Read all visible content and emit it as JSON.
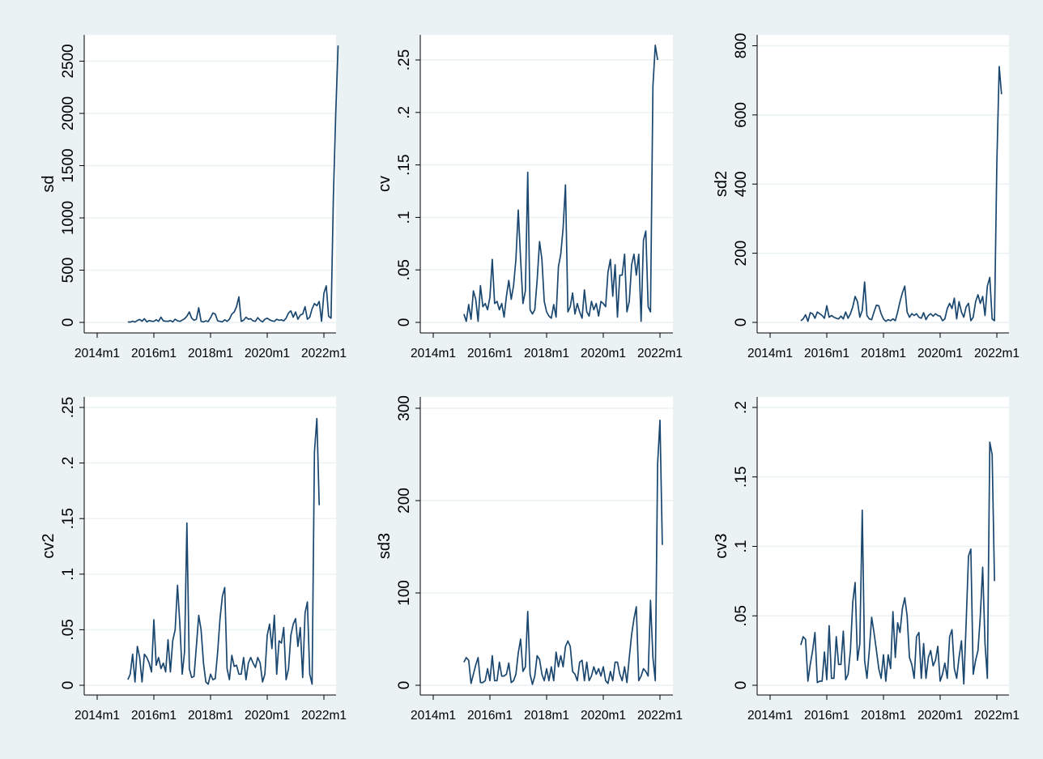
{
  "figure": {
    "background": "#eaf2f3",
    "panel_background": "#ffffff",
    "line_color": "#1a476f",
    "grid_color": "#eaf2f3"
  },
  "chart_data": [
    {
      "type": "line",
      "ylabel": "sd",
      "xlabel": "",
      "xlim": [
        "2014m1",
        "2022m1"
      ],
      "ylim": [
        0,
        2700
      ],
      "yticks": [
        0,
        500,
        1000,
        1500,
        2000,
        2500
      ],
      "ytick_labels": [
        "0",
        "500",
        "1000",
        "1500",
        "2000",
        "2500"
      ],
      "xticks": [
        "2014m1",
        "2016m1",
        "2018m1",
        "2020m1",
        "2022m1"
      ],
      "grid": true,
      "x_start": "2015m2",
      "values": [
        5,
        2,
        12,
        3,
        18,
        28,
        12,
        35,
        5,
        18,
        12,
        10,
        25,
        10,
        50,
        15,
        12,
        10,
        18,
        5,
        30,
        15,
        10,
        22,
        35,
        60,
        100,
        40,
        20,
        30,
        140,
        10,
        5,
        15,
        8,
        45,
        90,
        80,
        15,
        10,
        5,
        25,
        10,
        30,
        80,
        100,
        150,
        245,
        10,
        20,
        50,
        30,
        35,
        15,
        10,
        45,
        20,
        5,
        30,
        40,
        25,
        15,
        10,
        30,
        20,
        25,
        15,
        40,
        90,
        110,
        50,
        100,
        30,
        70,
        80,
        150,
        30,
        50,
        130,
        180,
        160,
        200,
        10,
        280,
        350,
        60,
        40,
        1200,
        2000,
        2650
      ]
    },
    {
      "type": "line",
      "ylabel": "cv",
      "xlabel": "",
      "xlim": [
        "2014m1",
        "2022m1"
      ],
      "ylim": [
        0,
        0.27
      ],
      "yticks": [
        0,
        0.05,
        0.1,
        0.15,
        0.2,
        0.25
      ],
      "ytick_labels": [
        "0",
        ".05",
        ".1",
        ".15",
        ".2",
        ".25"
      ],
      "xticks": [
        "2014m1",
        "2016m1",
        "2018m1",
        "2020m1",
        "2022m1"
      ],
      "grid": true,
      "x_start": "2015m2",
      "values": [
        0.008,
        0.001,
        0.017,
        0.003,
        0.03,
        0.022,
        0.001,
        0.035,
        0.015,
        0.018,
        0.012,
        0.024,
        0.06,
        0.018,
        0.02,
        0.012,
        0.018,
        0.005,
        0.025,
        0.04,
        0.022,
        0.035,
        0.06,
        0.107,
        0.06,
        0.018,
        0.03,
        0.143,
        0.012,
        0.008,
        0.012,
        0.04,
        0.077,
        0.06,
        0.02,
        0.01,
        0.006,
        0.004,
        0.017,
        0.005,
        0.053,
        0.065,
        0.09,
        0.131,
        0.01,
        0.015,
        0.028,
        0.008,
        0.018,
        0.01,
        0.004,
        0.031,
        0.01,
        0.006,
        0.02,
        0.012,
        0.018,
        0.006,
        0.02,
        0.018,
        0.015,
        0.048,
        0.06,
        0.025,
        0.055,
        0.005,
        0.045,
        0.045,
        0.065,
        0.01,
        0.02,
        0.055,
        0.065,
        0.045,
        0.065,
        0.001,
        0.078,
        0.087,
        0.015,
        0.01,
        0.225,
        0.264,
        0.25
      ]
    },
    {
      "type": "line",
      "ylabel": "sd2",
      "xlabel": "",
      "xlim": [
        "2014m1",
        "2022m1"
      ],
      "ylim": [
        0,
        830
      ],
      "yticks": [
        0,
        200,
        400,
        600,
        800
      ],
      "ytick_labels": [
        "0",
        "200",
        "400",
        "600",
        "800"
      ],
      "xticks": [
        "2014m1",
        "2016m1",
        "2018m1",
        "2020m1",
        "2022m1"
      ],
      "grid": true,
      "x_start": "2015m2",
      "values": [
        5,
        10,
        22,
        3,
        28,
        25,
        12,
        30,
        25,
        20,
        12,
        48,
        15,
        20,
        15,
        12,
        10,
        18,
        10,
        30,
        12,
        25,
        45,
        75,
        60,
        15,
        35,
        117,
        20,
        10,
        8,
        30,
        50,
        48,
        25,
        10,
        3,
        8,
        5,
        10,
        5,
        30,
        60,
        85,
        105,
        30,
        15,
        25,
        20,
        25,
        15,
        12,
        28,
        8,
        20,
        25,
        18,
        25,
        20,
        18,
        5,
        10,
        40,
        55,
        40,
        70,
        10,
        60,
        30,
        15,
        45,
        55,
        5,
        15,
        60,
        80,
        55,
        75,
        20,
        105,
        130,
        10,
        5,
        460,
        740,
        660
      ]
    },
    {
      "type": "line",
      "ylabel": "cv2",
      "xlabel": "",
      "xlim": [
        "2014m1",
        "2022m1"
      ],
      "ylim": [
        0,
        0.25
      ],
      "yticks": [
        0,
        0.05,
        0.1,
        0.15,
        0.2,
        0.25
      ],
      "ytick_labels": [
        "0",
        ".05",
        ".1",
        ".15",
        ".2",
        ".25"
      ],
      "xticks": [
        "2014m1",
        "2016m1",
        "2018m1",
        "2020m1",
        "2022m1"
      ],
      "grid": true,
      "x_start": "2015m2",
      "values": [
        0.005,
        0.01,
        0.028,
        0.003,
        0.035,
        0.025,
        0.003,
        0.028,
        0.025,
        0.02,
        0.012,
        0.059,
        0.018,
        0.025,
        0.015,
        0.02,
        0.012,
        0.041,
        0.012,
        0.04,
        0.05,
        0.09,
        0.055,
        0.01,
        0.03,
        0.146,
        0.015,
        0.007,
        0.008,
        0.035,
        0.063,
        0.05,
        0.02,
        0.003,
        0.001,
        0.01,
        0.005,
        0.006,
        0.03,
        0.06,
        0.08,
        0.088,
        0.015,
        0.005,
        0.027,
        0.017,
        0.018,
        0.01,
        0.01,
        0.025,
        0.005,
        0.02,
        0.025,
        0.02,
        0.016,
        0.025,
        0.02,
        0.003,
        0.01,
        0.045,
        0.055,
        0.033,
        0.063,
        0.01,
        0.04,
        0.038,
        0.052,
        0.005,
        0.015,
        0.045,
        0.055,
        0.06,
        0.035,
        0.052,
        0.007,
        0.065,
        0.075,
        0.01,
        0.001,
        0.21,
        0.24,
        0.162
      ]
    },
    {
      "type": "line",
      "ylabel": "sd3",
      "xlabel": "",
      "xlim": [
        "2014m1",
        "2022m1"
      ],
      "ylim": [
        0,
        310
      ],
      "yticks": [
        0,
        100,
        200,
        300
      ],
      "ytick_labels": [
        "0",
        "100",
        "200",
        "300"
      ],
      "xticks": [
        "2014m1",
        "2016m1",
        "2018m1",
        "2020m1",
        "2022m1"
      ],
      "grid": true,
      "x_start": "2015m2",
      "values": [
        25,
        30,
        27,
        2,
        12,
        22,
        30,
        3,
        3,
        5,
        18,
        5,
        32,
        5,
        5,
        25,
        10,
        10,
        12,
        24,
        3,
        5,
        12,
        35,
        50,
        15,
        20,
        80,
        12,
        1,
        10,
        32,
        28,
        12,
        5,
        18,
        5,
        20,
        5,
        36,
        20,
        32,
        20,
        42,
        48,
        42,
        15,
        12,
        5,
        25,
        27,
        5,
        25,
        5,
        10,
        20,
        12,
        18,
        10,
        20,
        5,
        2,
        15,
        5,
        25,
        25,
        12,
        5,
        20,
        3,
        30,
        55,
        72,
        85,
        5,
        10,
        18,
        15,
        10,
        92,
        30,
        5,
        240,
        287,
        152
      ]
    },
    {
      "type": "line",
      "ylabel": "cv3",
      "xlabel": "",
      "xlim": [
        "2014m1",
        "2022m1"
      ],
      "ylim": [
        0,
        0.2
      ],
      "yticks": [
        0,
        0.05,
        0.1,
        0.15,
        0.2
      ],
      "ytick_labels": [
        "0",
        ".05",
        ".1",
        ".15",
        ".2"
      ],
      "xticks": [
        "2014m1",
        "2016m1",
        "2018m1",
        "2020m1",
        "2022m1"
      ],
      "grid": true,
      "x_start": "2015m2",
      "values": [
        0.029,
        0.035,
        0.033,
        0.003,
        0.015,
        0.025,
        0.038,
        0.002,
        0.003,
        0.003,
        0.024,
        0.004,
        0.043,
        0.005,
        0.005,
        0.035,
        0.015,
        0.015,
        0.039,
        0.004,
        0.008,
        0.025,
        0.06,
        0.074,
        0.018,
        0.03,
        0.126,
        0.018,
        0.005,
        0.025,
        0.049,
        0.038,
        0.025,
        0.012,
        0.005,
        0.022,
        0.003,
        0.022,
        0.012,
        0.053,
        0.02,
        0.045,
        0.038,
        0.055,
        0.063,
        0.05,
        0.02,
        0.015,
        0.005,
        0.035,
        0.038,
        0.005,
        0.03,
        0.005,
        0.02,
        0.025,
        0.014,
        0.018,
        0.028,
        0.003,
        0.008,
        0.016,
        0.005,
        0.035,
        0.04,
        0.012,
        0.005,
        0.02,
        0.032,
        0.001,
        0.045,
        0.093,
        0.098,
        0.008,
        0.018,
        0.025,
        0.05,
        0.085,
        0.03,
        0.005,
        0.175,
        0.166,
        0.075
      ]
    }
  ]
}
